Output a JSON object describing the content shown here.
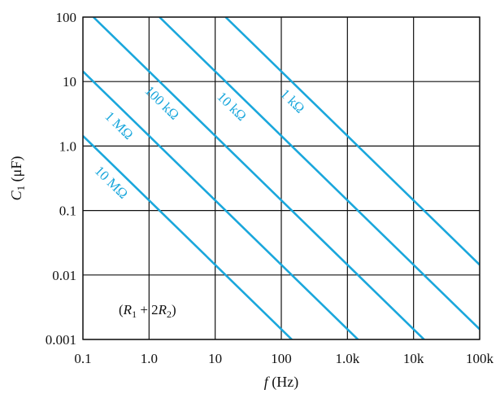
{
  "chart_data": {
    "type": "line",
    "xscale": "log",
    "yscale": "log",
    "xlim": [
      0.1,
      100000
    ],
    "ylim": [
      0.001,
      100
    ],
    "grid": true,
    "x_ticks": [
      0.1,
      1,
      10,
      100,
      1000,
      10000,
      100000
    ],
    "x_tick_labels": [
      "0.1",
      "1.0",
      "10",
      "100",
      "1.0k",
      "10k",
      "100k"
    ],
    "y_ticks": [
      0.001,
      0.01,
      0.1,
      1,
      10,
      100
    ],
    "y_tick_labels": [
      "0.001",
      "0.01",
      "0.1",
      "1.0",
      "10",
      "100"
    ],
    "xlabel": {
      "symbol": "f",
      "unit": " (Hz)"
    },
    "ylabel": {
      "symbol": "C",
      "subscript": "1",
      "unit": " (μF)"
    },
    "annotation": {
      "open": "(",
      "r1": "R",
      "r1_sub": "1",
      "mid": " + 2",
      "r2": "R",
      "r2_sub": "2",
      "close": ")"
    },
    "color": "#1aa7dc",
    "series": [
      {
        "name": "10 MΩ",
        "resistance_ohm": 10000000,
        "x": [
          0.1,
          150
        ],
        "y": [
          1.44,
          0.00096
        ]
      },
      {
        "name": "1 MΩ",
        "resistance_ohm": 1000000,
        "x": [
          0.1,
          1500
        ],
        "y": [
          14.4,
          0.00096
        ]
      },
      {
        "name": "100 kΩ",
        "resistance_ohm": 100000,
        "x": [
          0.144,
          15000
        ],
        "y": [
          100,
          0.00096
        ]
      },
      {
        "name": "10 kΩ",
        "resistance_ohm": 10000,
        "x": [
          1.44,
          100000
        ],
        "y": [
          100,
          0.00144
        ]
      },
      {
        "name": "1 kΩ",
        "resistance_ohm": 1000,
        "x": [
          14.4,
          100000
        ],
        "y": [
          100,
          0.0144
        ]
      }
    ]
  }
}
